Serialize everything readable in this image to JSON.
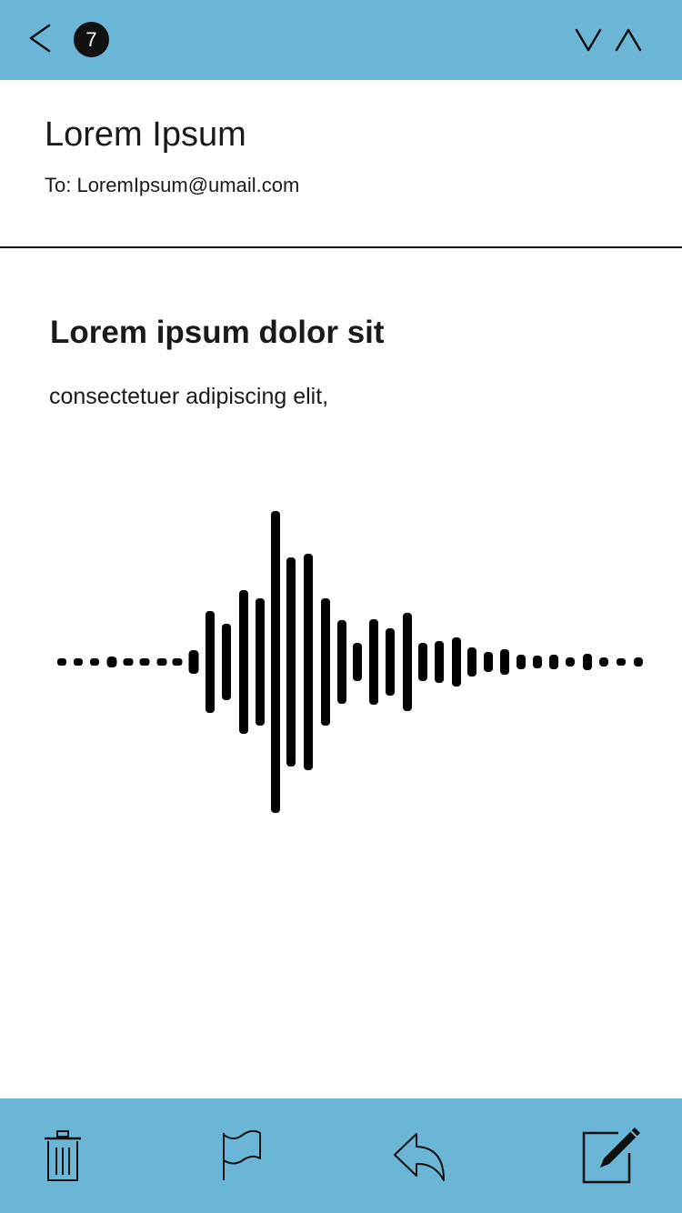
{
  "topbar": {
    "unread_count": "7",
    "icons": {
      "back": "chevron-left-icon",
      "next": "chevron-down-icon",
      "previous": "chevron-up-icon"
    }
  },
  "email": {
    "subject": "Lorem Ipsum",
    "recipient": "To: LoremIpsum@umail.com",
    "heading": "Lorem ipsum dolor sit",
    "body": "consectetuer adipiscing elit,"
  },
  "audio_message": {
    "icon": "audio-waveform-icon"
  },
  "toolbar": {
    "icons": [
      "trash-icon",
      "flag-icon",
      "reply-icon",
      "compose-icon"
    ]
  },
  "colors": {
    "bar_background": "#6bb5d6",
    "badge_background": "#111111",
    "text": "#1a1a1a"
  }
}
